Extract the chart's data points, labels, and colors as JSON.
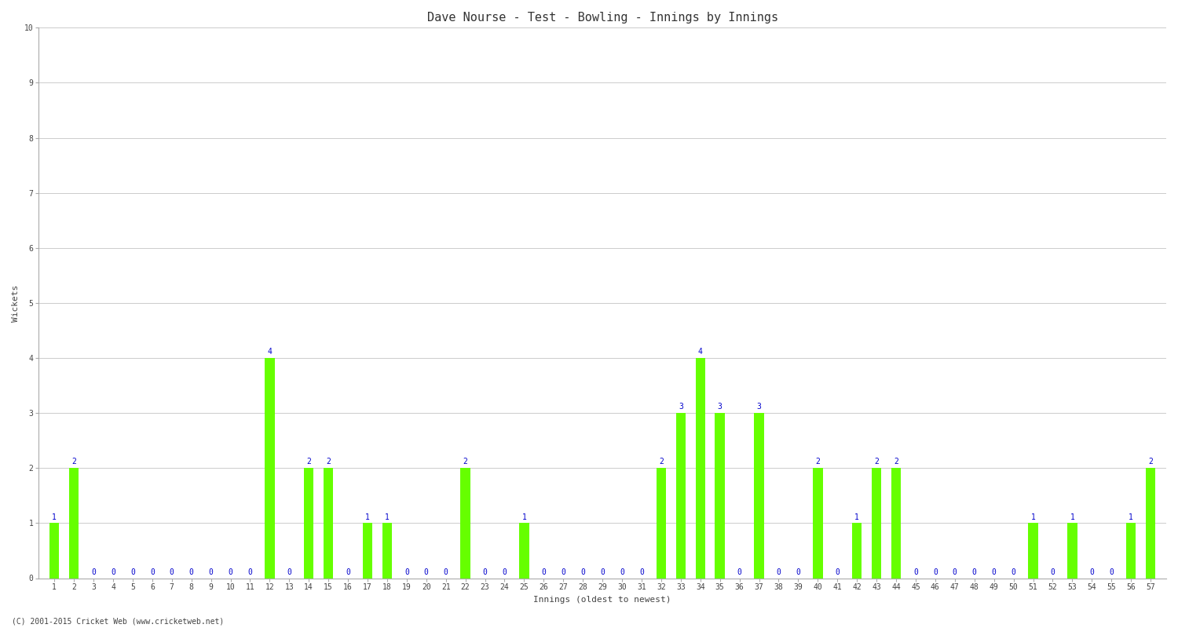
{
  "title": "Dave Nourse - Test - Bowling - Innings by Innings",
  "xlabel": "Innings (oldest to newest)",
  "ylabel": "Wickets",
  "background_color": "#ffffff",
  "bar_color": "#66ff00",
  "label_color": "#0000cc",
  "ylim": [
    0,
    10
  ],
  "yticks": [
    0,
    1,
    2,
    3,
    4,
    5,
    6,
    7,
    8,
    9,
    10
  ],
  "categories": [
    "1",
    "2",
    "3",
    "4",
    "5",
    "6",
    "7",
    "8",
    "9",
    "10",
    "11",
    "12",
    "13",
    "14",
    "15",
    "16",
    "17",
    "18",
    "19",
    "20",
    "21",
    "22",
    "23",
    "24",
    "25",
    "26",
    "27",
    "28",
    "29",
    "30",
    "31",
    "32",
    "33",
    "34",
    "35",
    "36",
    "37",
    "38",
    "39",
    "40",
    "41",
    "42",
    "43",
    "44",
    "45",
    "46",
    "47",
    "48",
    "49",
    "50",
    "51",
    "52",
    "53",
    "54",
    "55",
    "56",
    "57"
  ],
  "values": [
    1,
    2,
    0,
    0,
    0,
    0,
    0,
    0,
    0,
    0,
    0,
    4,
    0,
    2,
    2,
    0,
    1,
    1,
    0,
    0,
    0,
    2,
    0,
    0,
    1,
    0,
    0,
    0,
    0,
    0,
    0,
    2,
    3,
    4,
    3,
    0,
    3,
    0,
    0,
    2,
    0,
    1,
    2,
    2,
    0,
    0,
    0,
    0,
    0,
    0,
    1,
    0,
    1,
    0,
    0,
    1,
    2
  ],
  "footer": "(C) 2001-2015 Cricket Web (www.cricketweb.net)",
  "title_fontsize": 11,
  "axis_fontsize": 8,
  "tick_fontsize": 7,
  "label_fontsize": 7,
  "bar_width": 0.5
}
